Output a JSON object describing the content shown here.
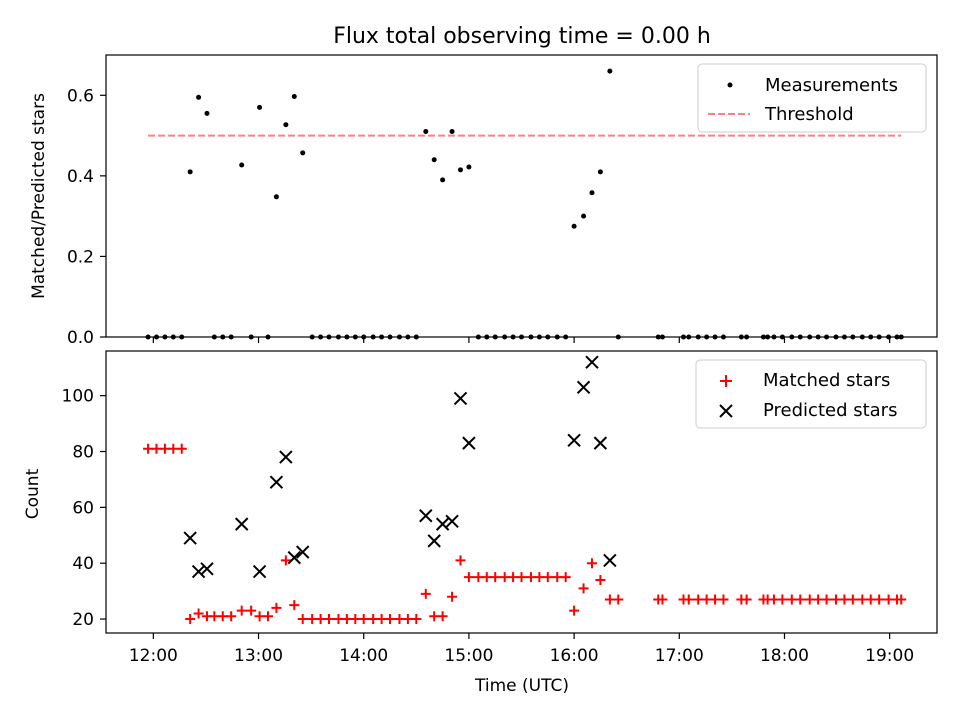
{
  "figure_title": "Flux total observing time = 0.00 h",
  "colors": {
    "measurements": "#000000",
    "threshold": "#ff7f7f",
    "matched": "#ff0000",
    "predicted": "#000000",
    "axes": "#000000"
  },
  "chart_data": [
    {
      "type": "scatter",
      "title": "Flux total observing time = 0.00 h",
      "ylabel": "Matched/Predicted stars",
      "xlabel": "",
      "xlim": [
        11.55,
        19.45
      ],
      "ylim": [
        0,
        0.7
      ],
      "yticks": [
        "0.0",
        "0.2",
        "0.4",
        "0.6"
      ],
      "ytick_values": [
        0,
        0.2,
        0.4,
        0.6
      ],
      "legend": [
        "Measurements",
        "Threshold"
      ],
      "legend_position": "upper right",
      "series": [
        {
          "name": "Measurements",
          "x": [
            11.95,
            12.03,
            12.11,
            12.19,
            12.27,
            12.35,
            12.43,
            12.51,
            12.58,
            12.66,
            12.74,
            12.84,
            12.93,
            13.01,
            13.09,
            13.17,
            13.26,
            13.34,
            13.42,
            13.51,
            13.59,
            13.67,
            13.76,
            13.84,
            13.92,
            14.0,
            14.09,
            14.17,
            14.25,
            14.34,
            14.42,
            14.5,
            14.59,
            14.67,
            14.75,
            14.84,
            14.92,
            15.0,
            15.09,
            15.17,
            15.25,
            15.34,
            15.42,
            15.5,
            15.59,
            15.67,
            15.75,
            15.84,
            15.92,
            16.0,
            16.09,
            16.17,
            16.25,
            16.34,
            16.42,
            16.8,
            16.84,
            17.04,
            17.09,
            17.18,
            17.26,
            17.34,
            17.42,
            17.59,
            17.64,
            17.8,
            17.84,
            17.9,
            17.98,
            18.07,
            18.15,
            18.24,
            18.32,
            18.4,
            18.49,
            18.57,
            18.65,
            18.74,
            18.82,
            18.9,
            18.99,
            19.07,
            19.11
          ],
          "y": [
            0,
            0,
            0,
            0,
            0,
            0.41,
            0.595,
            0.555,
            0,
            0,
            0,
            0.427,
            0,
            0.57,
            0,
            0.348,
            0.527,
            0.597,
            0.457,
            0,
            0,
            0,
            0,
            0,
            0,
            0,
            0,
            0,
            0,
            0,
            0,
            0,
            0.51,
            0.44,
            0.39,
            0.51,
            0.415,
            0.422,
            0,
            0,
            0,
            0,
            0,
            0,
            0,
            0,
            0,
            0,
            0,
            0.275,
            0.3,
            0.358,
            0.41,
            0.66,
            0,
            0,
            0,
            0,
            0,
            0,
            0,
            0,
            0,
            0,
            0,
            0,
            0,
            0,
            0,
            0,
            0,
            0,
            0,
            0,
            0,
            0,
            0,
            0,
            0,
            0,
            0,
            0,
            0
          ]
        },
        {
          "name": "Threshold",
          "x": [
            11.95,
            19.11
          ],
          "y": [
            0.5,
            0.5
          ]
        }
      ]
    },
    {
      "type": "scatter",
      "xlabel": "Time (UTC)",
      "ylabel": "Count",
      "xlim": [
        11.55,
        19.45
      ],
      "ylim": [
        15,
        116
      ],
      "xticks": [
        "12:00",
        "13:00",
        "14:00",
        "15:00",
        "16:00",
        "17:00",
        "18:00",
        "19:00"
      ],
      "xtick_values": [
        12,
        13,
        14,
        15,
        16,
        17,
        18,
        19
      ],
      "yticks": [
        "20",
        "40",
        "60",
        "80",
        "100"
      ],
      "ytick_values": [
        20,
        40,
        60,
        80,
        100
      ],
      "legend": [
        "Matched stars",
        "Predicted stars"
      ],
      "legend_position": "upper right",
      "series": [
        {
          "name": "Matched stars",
          "x": [
            11.95,
            12.03,
            12.11,
            12.19,
            12.27,
            12.35,
            12.43,
            12.51,
            12.58,
            12.66,
            12.74,
            12.84,
            12.93,
            13.01,
            13.09,
            13.17,
            13.26,
            13.34,
            13.42,
            13.51,
            13.59,
            13.67,
            13.76,
            13.84,
            13.92,
            14.0,
            14.09,
            14.17,
            14.25,
            14.34,
            14.42,
            14.5,
            14.59,
            14.67,
            14.75,
            14.84,
            14.92,
            15.0,
            15.09,
            15.17,
            15.25,
            15.34,
            15.42,
            15.5,
            15.59,
            15.67,
            15.75,
            15.84,
            15.92,
            16.0,
            16.09,
            16.17,
            16.25,
            16.34,
            16.42,
            16.8,
            16.84,
            17.04,
            17.09,
            17.18,
            17.26,
            17.34,
            17.42,
            17.59,
            17.64,
            17.8,
            17.84,
            17.9,
            17.98,
            18.07,
            18.15,
            18.24,
            18.32,
            18.4,
            18.49,
            18.57,
            18.65,
            18.74,
            18.82,
            18.9,
            18.99,
            19.07,
            19.11
          ],
          "y": [
            81,
            81,
            81,
            81,
            81,
            20,
            22,
            21,
            21,
            21,
            21,
            23,
            23,
            21,
            21,
            24,
            41,
            25,
            20,
            20,
            20,
            20,
            20,
            20,
            20,
            20,
            20,
            20,
            20,
            20,
            20,
            20,
            29,
            21,
            21,
            28,
            41,
            35,
            35,
            35,
            35,
            35,
            35,
            35,
            35,
            35,
            35,
            35,
            35,
            23,
            31,
            40,
            34,
            27,
            27,
            27,
            27,
            27,
            27,
            27,
            27,
            27,
            27,
            27,
            27,
            27,
            27,
            27,
            27,
            27,
            27,
            27,
            27,
            27,
            27,
            27,
            27,
            27,
            27,
            27,
            27,
            27,
            27
          ]
        },
        {
          "name": "Predicted stars",
          "x": [
            12.35,
            12.43,
            12.51,
            12.84,
            13.01,
            13.17,
            13.26,
            13.34,
            13.42,
            14.59,
            14.67,
            14.75,
            14.84,
            14.92,
            15.0,
            16.0,
            16.09,
            16.17,
            16.25,
            16.34
          ],
          "y": [
            49,
            37,
            38,
            54,
            37,
            69,
            78,
            42,
            44,
            57,
            48,
            54,
            55,
            99,
            83,
            84,
            103,
            112,
            83,
            41
          ]
        }
      ]
    }
  ]
}
